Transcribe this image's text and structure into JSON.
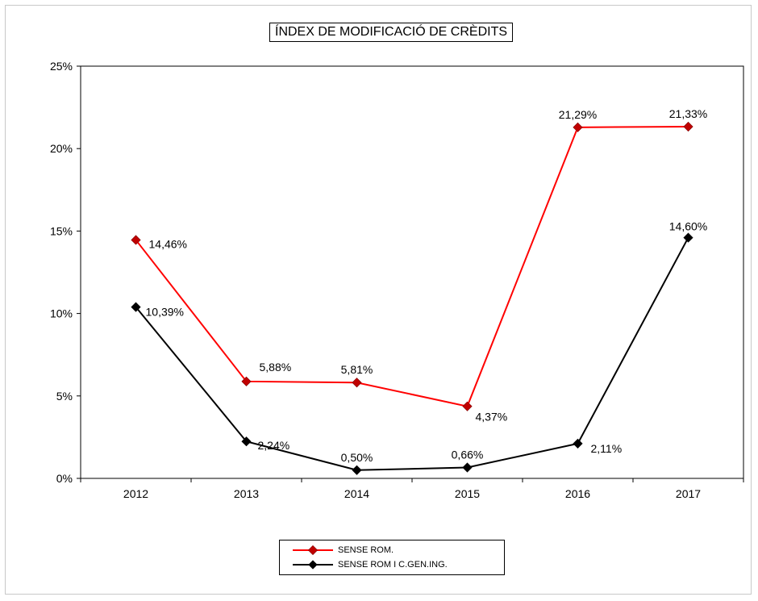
{
  "chart_data": {
    "type": "line",
    "title": "ÍNDEX DE MODIFICACIÓ DE CRÈDITS",
    "categories": [
      "2012",
      "2013",
      "2014",
      "2015",
      "2016",
      "2017"
    ],
    "ylim": [
      0,
      25
    ],
    "y_ticks": [
      0,
      5,
      10,
      15,
      20,
      25
    ],
    "y_tick_labels": [
      "0%",
      "5%",
      "10%",
      "15%",
      "20%",
      "25%"
    ],
    "grid": false,
    "legend_position": "bottom-center",
    "series": [
      {
        "name": "SENSE ROM.",
        "color": "#ff0000",
        "marker_color": "#c00000",
        "values": [
          14.46,
          5.88,
          5.81,
          4.37,
          21.29,
          21.33
        ],
        "labels": [
          "14,46%",
          "5,88%",
          "5,81%",
          "4,37%",
          "21,29%",
          "21,33%"
        ]
      },
      {
        "name": "SENSE ROM I C.GEN.ING.",
        "color": "#000000",
        "marker_color": "#000000",
        "values": [
          10.39,
          2.24,
          0.5,
          0.66,
          2.11,
          14.6
        ],
        "labels": [
          "10,39%",
          "2,24%",
          "0,50%",
          "0,66%",
          "2,11%",
          "14,60%"
        ]
      }
    ]
  }
}
